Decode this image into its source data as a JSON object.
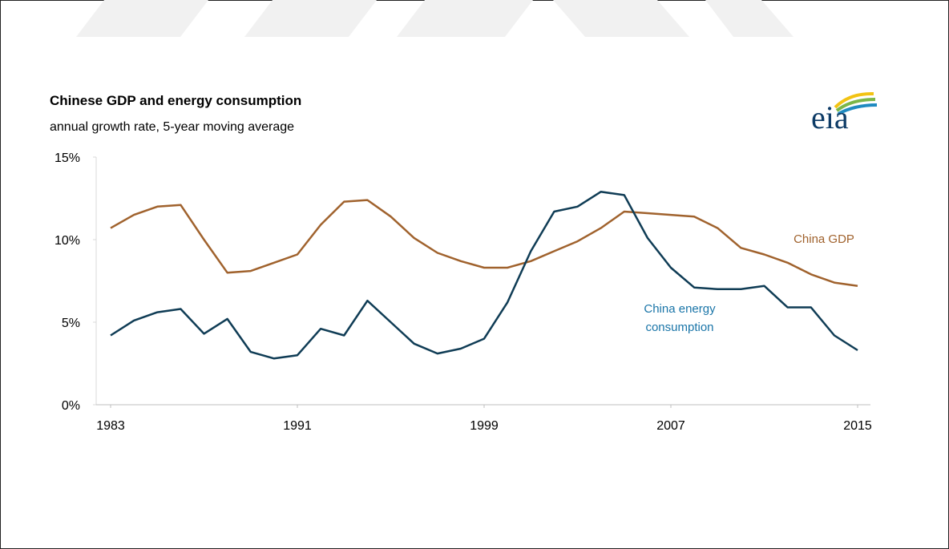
{
  "chart_data": {
    "type": "line",
    "title": "Chinese GDP and energy consumption",
    "subtitle": "annual growth rate, 5-year moving average",
    "source_logo": "eia",
    "x": [
      1983,
      1984,
      1985,
      1986,
      1987,
      1988,
      1989,
      1990,
      1991,
      1992,
      1993,
      1994,
      1995,
      1996,
      1997,
      1998,
      1999,
      2000,
      2001,
      2002,
      2003,
      2004,
      2005,
      2006,
      2007,
      2008,
      2009,
      2010,
      2011,
      2012,
      2013,
      2014,
      2015
    ],
    "series": [
      {
        "name": "China GDP",
        "color": "#a0622d",
        "label_color": "#a0622d",
        "values": [
          10.7,
          11.5,
          12.0,
          12.1,
          10.0,
          8.0,
          8.1,
          8.6,
          9.1,
          10.9,
          12.3,
          12.4,
          11.4,
          10.1,
          9.2,
          8.7,
          8.3,
          8.3,
          8.7,
          9.3,
          9.9,
          10.7,
          11.7,
          11.6,
          11.5,
          11.4,
          10.7,
          9.5,
          9.1,
          8.6,
          7.9,
          7.4,
          7.2
        ]
      },
      {
        "name": "China energy consumption",
        "color": "#0f3c55",
        "label_color": "#1a75a8",
        "values": [
          4.2,
          5.1,
          5.6,
          5.8,
          4.3,
          5.2,
          3.2,
          2.8,
          3.0,
          4.6,
          4.2,
          6.3,
          5.0,
          3.7,
          3.1,
          3.4,
          4.0,
          6.2,
          9.3,
          11.7,
          12.0,
          12.9,
          12.7,
          10.1,
          8.3,
          7.1,
          7.0,
          7.0,
          7.2,
          5.9,
          5.9,
          4.2,
          3.3
        ]
      }
    ],
    "xlim": [
      1983,
      2015
    ],
    "xticks": [
      1983,
      1991,
      1999,
      2007,
      2015
    ],
    "ylim": [
      0,
      15
    ],
    "yticks": [
      {
        "value": 0,
        "label": "0%"
      },
      {
        "value": 5,
        "label": "5%"
      },
      {
        "value": 10,
        "label": "10%"
      },
      {
        "value": 15,
        "label": "15%"
      }
    ],
    "grid": false
  }
}
